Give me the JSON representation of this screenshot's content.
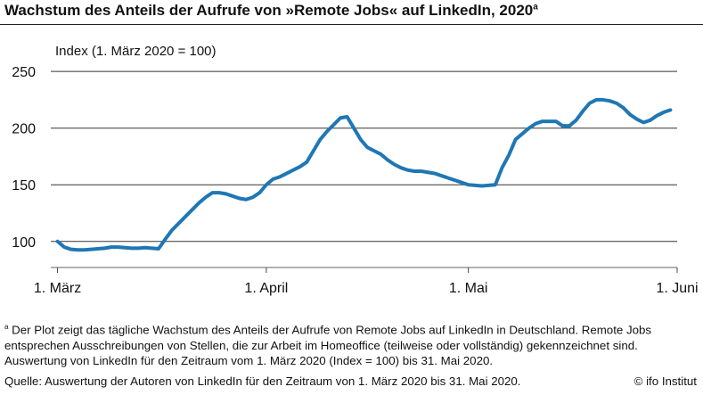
{
  "title": "Wachstum des Anteils der Aufrufe von »Remote Jobs« auf LinkedIn, 2020",
  "title_marker": "a",
  "note_marker": "a",
  "note": "Der Plot zeigt das tägliche Wachstum des Anteils der Aufrufe von Remote Jobs auf LinkedIn in Deutschland. Remote Jobs entsprechen Ausschreibungen von Stellen, die zur Arbeit im Homeoffice (teilweise oder vollständig) gekennzeichnet sind.  Auswertung von LinkedIn für den Zeitraum vom 1. März 2020 (Index = 100) bis 31. Mai 2020.",
  "source": "Quelle: Auswertung der Autoren von LinkedIn für den Zeitraum von 1. März 2020 bis 31. Mai 2020.",
  "credit": "© ifo Institut",
  "colors": {
    "line": "#1f77b4",
    "grid": "#333333"
  },
  "chart_data": {
    "type": "line",
    "ylabel": "Index (1. März 2020 = 100)",
    "ylim": [
      77,
      258
    ],
    "yticks": [
      100,
      150,
      200,
      250
    ],
    "grid": "horizontal",
    "xlim": [
      -1,
      92
    ],
    "xticks": [
      {
        "x": 0,
        "label": "1. März"
      },
      {
        "x": 31,
        "label": "1. April"
      },
      {
        "x": 61,
        "label": "1. Mai"
      },
      {
        "x": 92,
        "label": "1. Juni"
      }
    ],
    "x_unit": "days since 1. März 2020",
    "series": [
      {
        "values": [
          100,
          95,
          93,
          92.5,
          92.5,
          93,
          93.5,
          94,
          95,
          95,
          94.5,
          94,
          94,
          94.5,
          94,
          93.5,
          102,
          110,
          116,
          122,
          128,
          134,
          139,
          143,
          143,
          142,
          140,
          138,
          137,
          139,
          143,
          150,
          155,
          157,
          160,
          163,
          166,
          170,
          180,
          190,
          197,
          203,
          209,
          210,
          200,
          190,
          183,
          180,
          177,
          172,
          168,
          165,
          163,
          162,
          162,
          161,
          160,
          158,
          156,
          154,
          152,
          150,
          149.5,
          149,
          149.5,
          150,
          165,
          176,
          190,
          195,
          200,
          204,
          206,
          206,
          206,
          202,
          202,
          207,
          215,
          222,
          225,
          225,
          224,
          222,
          218,
          212,
          208,
          205,
          207,
          211,
          214,
          216
        ]
      }
    ]
  }
}
